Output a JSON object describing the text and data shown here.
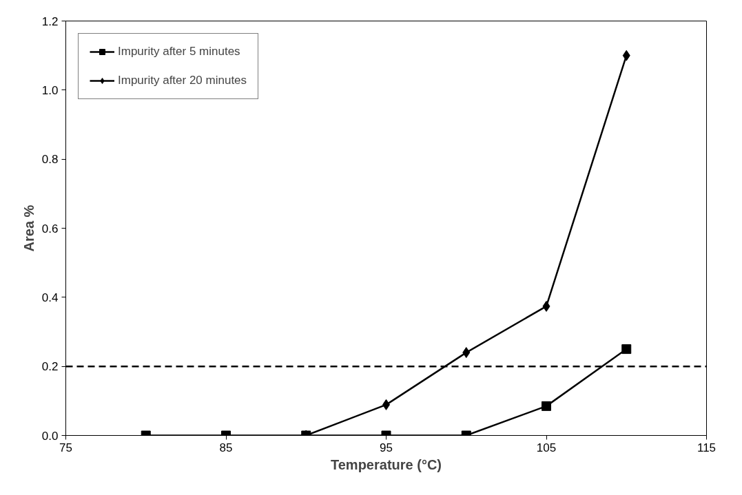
{
  "chart_data": {
    "type": "line",
    "xlabel": "Temperature (°C)",
    "ylabel": "Area %",
    "xlim": [
      75,
      115
    ],
    "xticks": [
      75,
      85,
      95,
      105,
      115
    ],
    "ylim": [
      0,
      1.2
    ],
    "yticks": [
      {
        "value": 0,
        "label": "0.0"
      },
      {
        "value": 0.2,
        "label": "0.2"
      },
      {
        "value": 0.4,
        "label": "0.4"
      },
      {
        "value": 0.6,
        "label": "0.6"
      },
      {
        "value": 0.8,
        "label": "0.8"
      },
      {
        "value": 1.0,
        "label": "1.0"
      },
      {
        "value": 1.2,
        "label": "1.2"
      }
    ],
    "grid": false,
    "legend": "top left",
    "line_style": "solid",
    "series": [
      {
        "name": "Impurity after 5 minutes",
        "color": "#000000",
        "marker": "square",
        "x": [
          80,
          85,
          90,
          95,
          100,
          105,
          110
        ],
        "values": [
          0,
          0,
          0,
          0,
          0,
          0.085,
          0.25
        ]
      },
      {
        "name": "Impurity after 20 minutes",
        "color": "#000000",
        "marker": "diamond",
        "x": [
          90,
          95,
          100,
          105,
          110
        ],
        "values": [
          0,
          0.089,
          0.24,
          0.374,
          1.1
        ]
      }
    ],
    "ref_lines": [
      {
        "axis": "y",
        "value": 0.2,
        "label": null,
        "color": "#000000",
        "line_style": "dashed"
      }
    ]
  }
}
